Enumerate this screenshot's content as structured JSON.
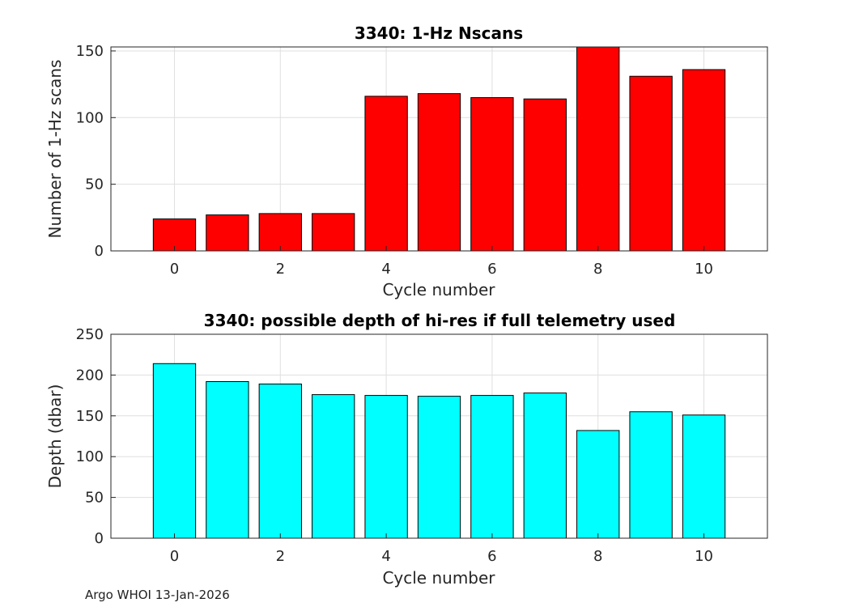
{
  "chart_data": [
    {
      "type": "bar",
      "title": "3340: 1-Hz Nscans",
      "xlabel": "Cycle number",
      "ylabel": "Number of 1-Hz scans",
      "x": [
        0,
        1,
        2,
        3,
        4,
        5,
        6,
        7,
        8,
        9,
        10
      ],
      "values": [
        24,
        27,
        28,
        28,
        116,
        118,
        115,
        114,
        153,
        131,
        136
      ],
      "xlim": [
        -1.2,
        11.2
      ],
      "ylim": [
        0,
        153
      ],
      "xticks": [
        0,
        2,
        4,
        6,
        8,
        10
      ],
      "yticks": [
        0,
        50,
        100,
        150
      ],
      "bar_color": "#ff0000",
      "grid": true
    },
    {
      "type": "bar",
      "title": "3340: possible depth of hi-res if full telemetry used",
      "xlabel": "Cycle number",
      "ylabel": "Depth (dbar)",
      "x": [
        0,
        1,
        2,
        3,
        4,
        5,
        6,
        7,
        8,
        9,
        10
      ],
      "values": [
        214,
        192,
        189,
        176,
        175,
        174,
        175,
        178,
        132,
        155,
        151
      ],
      "xlim": [
        -1.2,
        11.2
      ],
      "ylim": [
        0,
        250
      ],
      "xticks": [
        0,
        2,
        4,
        6,
        8,
        10
      ],
      "yticks": [
        0,
        50,
        100,
        150,
        200,
        250
      ],
      "bar_color": "#00ffff",
      "grid": true
    }
  ],
  "footer": "Argo WHOI 13-Jan-2026"
}
